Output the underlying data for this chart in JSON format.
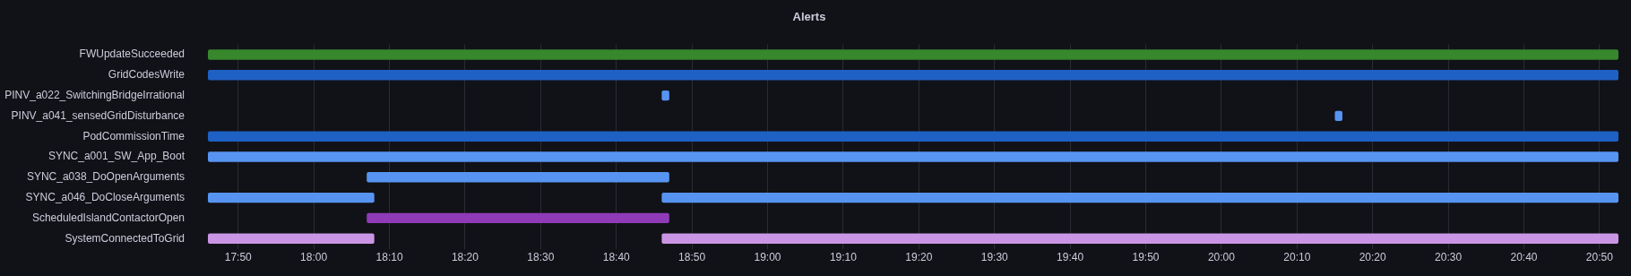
{
  "chart_data": {
    "type": "bar",
    "orientation": "horizontal",
    "title": "Alerts",
    "categories": [
      "FWUpdateSucceeded",
      "GridCodesWrite",
      "PINV_a022_SwitchingBridgeIrrational",
      "PINV_a041_sensedGridDisturbance",
      "PodCommissionTime",
      "SYNC_a001_SW_App_Boot",
      "SYNC_a038_DoOpenArguments",
      "SYNC_a046_DoCloseArguments",
      "ScheduledIslandContactorOpen",
      "SystemConnectedToGrid"
    ],
    "series": [
      {
        "base": [
          17.7667,
          17.7667,
          18.7667,
          20.25,
          17.7667,
          17.7667,
          18.1167,
          17.7667,
          18.1167,
          17.7667
        ],
        "values": [
          3.1083,
          3.1083,
          0.0167,
          0.0167,
          3.1083,
          3.1083,
          0.6667,
          0.3667,
          0.6667,
          0.3667
        ],
        "colors": [
          "#37872d",
          "#1f60c4",
          "#5794f2",
          "#5794f2",
          "#1f60c4",
          "#5794f2",
          "#5794f2",
          "#5794f2",
          "#8f3bb8",
          "#ca95e5"
        ]
      },
      {
        "base": [
          null,
          null,
          null,
          null,
          null,
          null,
          null,
          18.7667,
          null,
          18.7667
        ],
        "values": [
          null,
          null,
          null,
          null,
          null,
          null,
          null,
          2.1083,
          null,
          2.1083
        ],
        "colors": [
          "#37872d",
          "#1f60c4",
          "#5794f2",
          "#5794f2",
          "#1f60c4",
          "#5794f2",
          "#5794f2",
          "#5794f2",
          "#8f3bb8",
          "#ca95e5"
        ]
      }
    ],
    "xlim": [
      17.7667,
      20.875
    ],
    "xticks": [
      {
        "value": 17.8333,
        "label": "17:50"
      },
      {
        "value": 18.0,
        "label": "18:00"
      },
      {
        "value": 18.1667,
        "label": "18:10"
      },
      {
        "value": 18.3333,
        "label": "18:20"
      },
      {
        "value": 18.5,
        "label": "18:30"
      },
      {
        "value": 18.6667,
        "label": "18:40"
      },
      {
        "value": 18.8333,
        "label": "18:50"
      },
      {
        "value": 19.0,
        "label": "19:00"
      },
      {
        "value": 19.1667,
        "label": "19:10"
      },
      {
        "value": 19.3333,
        "label": "19:20"
      },
      {
        "value": 19.5,
        "label": "19:30"
      },
      {
        "value": 19.6667,
        "label": "19:40"
      },
      {
        "value": 19.8333,
        "label": "19:50"
      },
      {
        "value": 20.0,
        "label": "20:00"
      },
      {
        "value": 20.1667,
        "label": "20:10"
      },
      {
        "value": 20.3333,
        "label": "20:20"
      },
      {
        "value": 20.5,
        "label": "20:30"
      },
      {
        "value": 20.6667,
        "label": "20:40"
      },
      {
        "value": 20.8333,
        "label": "20:50"
      }
    ],
    "grid": "x",
    "legend": false
  }
}
